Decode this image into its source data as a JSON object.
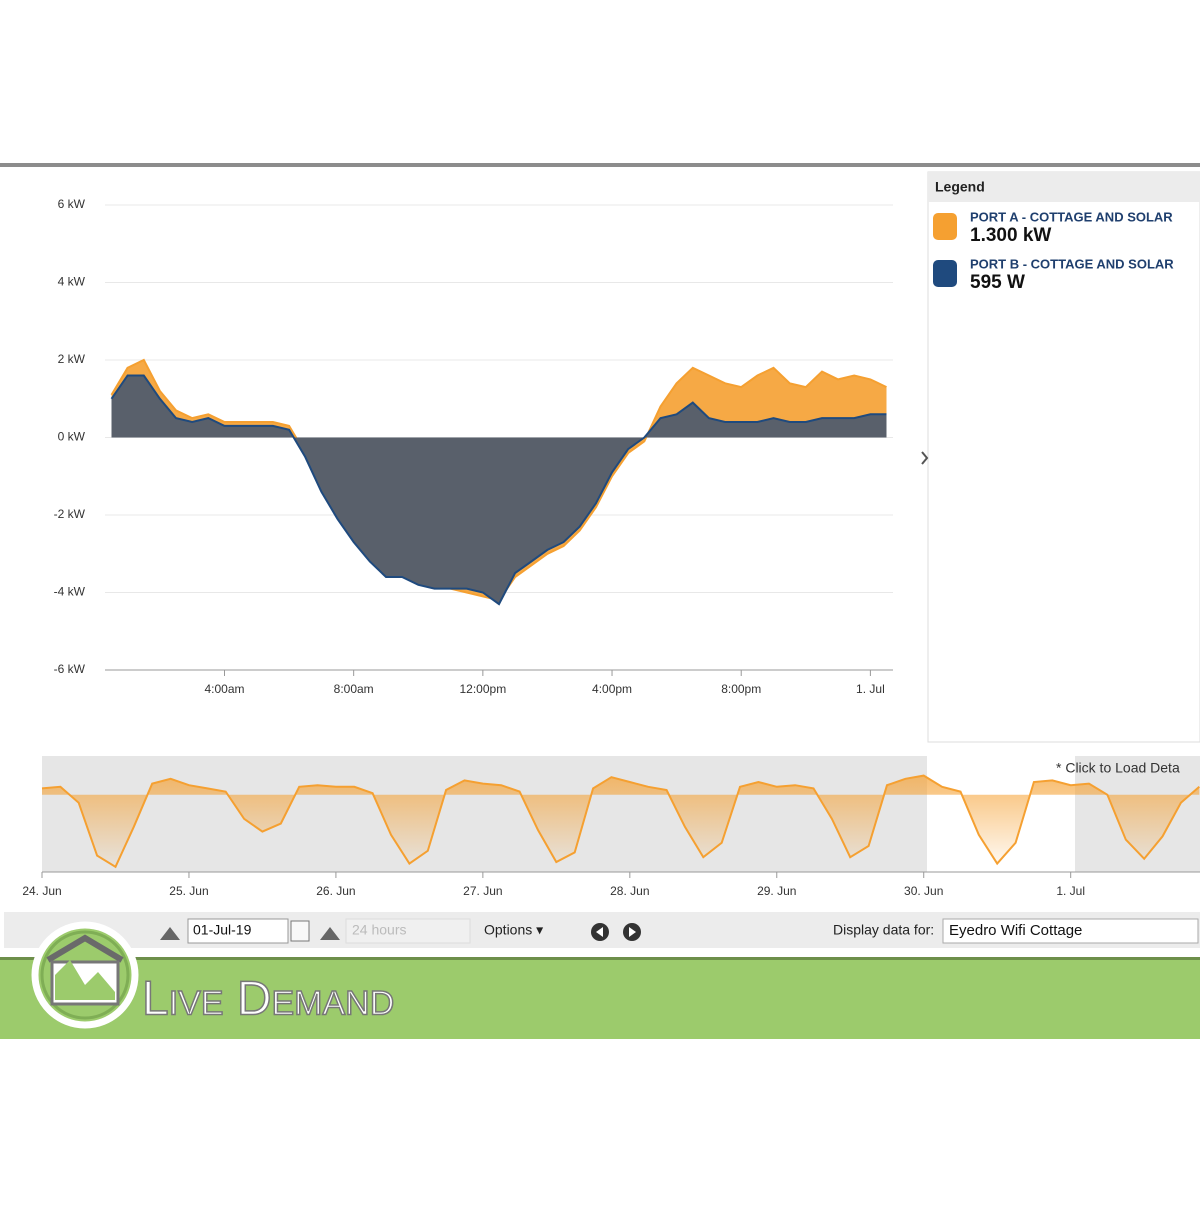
{
  "chart_data": [
    {
      "type": "area",
      "x": [
        0.5,
        1,
        1.5,
        2,
        2.5,
        3,
        3.5,
        4,
        4.5,
        5,
        5.5,
        6,
        6.5,
        7,
        7.5,
        8,
        8.5,
        9,
        9.5,
        10,
        10.5,
        11,
        11.5,
        12,
        12.5,
        13,
        13.5,
        14,
        14.5,
        15,
        15.5,
        16,
        16.5,
        17,
        17.5,
        18,
        18.5,
        19,
        19.5,
        20,
        20.5,
        21,
        21.5,
        22,
        22.5,
        23,
        23.5,
        24,
        24.5
      ],
      "series": [
        {
          "name": "PORT A - COTTAGE AND SOLAR",
          "current_label": "1.300 kW",
          "color": "#f5a031",
          "values": [
            1.1,
            1.8,
            2.0,
            1.2,
            0.7,
            0.5,
            0.6,
            0.4,
            0.4,
            0.4,
            0.4,
            0.3,
            -0.4,
            -1.3,
            -2.0,
            -2.6,
            -3.1,
            -3.5,
            -3.5,
            -3.7,
            -3.8,
            -3.9,
            -4.0,
            -4.1,
            -4.2,
            -3.6,
            -3.3,
            -3.0,
            -2.8,
            -2.4,
            -1.8,
            -1.0,
            -0.4,
            -0.1,
            0.8,
            1.4,
            1.8,
            1.6,
            1.4,
            1.3,
            1.6,
            1.8,
            1.4,
            1.3,
            1.7,
            1.5,
            1.6,
            1.5,
            1.3
          ]
        },
        {
          "name": "PORT B - COTTAGE AND SOLAR",
          "current_label": "595 W",
          "color": "#1f4a7e",
          "values": [
            1.0,
            1.6,
            1.6,
            1.0,
            0.5,
            0.4,
            0.5,
            0.3,
            0.3,
            0.3,
            0.3,
            0.2,
            -0.5,
            -1.4,
            -2.1,
            -2.7,
            -3.2,
            -3.6,
            -3.6,
            -3.8,
            -3.9,
            -3.9,
            -3.9,
            -4.0,
            -4.3,
            -3.5,
            -3.2,
            -2.9,
            -2.7,
            -2.3,
            -1.7,
            -0.9,
            -0.3,
            0.0,
            0.5,
            0.6,
            0.9,
            0.5,
            0.4,
            0.4,
            0.4,
            0.5,
            0.4,
            0.4,
            0.5,
            0.5,
            0.5,
            0.6,
            0.6
          ]
        }
      ],
      "xlim": [
        0.3,
        24.7
      ],
      "xticks": [
        {
          "value": 4,
          "label": "4:00am"
        },
        {
          "value": 8,
          "label": "8:00am"
        },
        {
          "value": 12,
          "label": "12:00pm"
        },
        {
          "value": 16,
          "label": "4:00pm"
        },
        {
          "value": 20,
          "label": "8:00pm"
        },
        {
          "value": 24,
          "label": "1. Jul"
        }
      ],
      "ylim": [
        -6,
        6
      ],
      "yticks": [
        {
          "value": -6,
          "label": "-6 kW"
        },
        {
          "value": -4,
          "label": "-4 kW"
        },
        {
          "value": -2,
          "label": "-2 kW"
        },
        {
          "value": 0,
          "label": "0 kW"
        },
        {
          "value": 2,
          "label": "2 kW"
        },
        {
          "value": 4,
          "label": "4 kW"
        },
        {
          "value": 6,
          "label": "6 kW"
        }
      ],
      "grid": true,
      "legend_title": "Legend"
    },
    {
      "type": "area",
      "annotation": "* Click to Load Deta",
      "x": [
        0,
        0.125,
        0.25,
        0.375,
        0.5,
        0.625,
        0.75,
        0.875,
        1,
        1.125,
        1.25,
        1.375,
        1.5,
        1.625,
        1.75,
        1.875,
        2,
        2.125,
        2.25,
        2.375,
        2.5,
        2.625,
        2.75,
        2.875,
        3,
        3.125,
        3.25,
        3.375,
        3.5,
        3.625,
        3.75,
        3.875,
        4,
        4.125,
        4.25,
        4.375,
        4.5,
        4.625,
        4.75,
        4.875,
        5,
        5.125,
        5.25,
        5.375,
        5.5,
        5.625,
        5.75,
        5.875,
        6,
        6.125,
        6.25,
        6.375,
        6.5,
        6.625,
        6.75,
        6.875,
        7,
        7.125,
        7.25,
        7.375,
        7.5,
        7.625,
        7.75,
        7.875
      ],
      "values": [
        0.4,
        0.5,
        -0.5,
        -3.8,
        -4.5,
        -2.0,
        0.7,
        1.0,
        0.6,
        0.4,
        0.2,
        -1.5,
        -2.3,
        -1.8,
        0.5,
        0.6,
        0.5,
        0.5,
        0.1,
        -2.5,
        -4.3,
        -3.5,
        0.3,
        0.9,
        0.7,
        0.6,
        0.2,
        -2.2,
        -4.2,
        -3.6,
        0.4,
        1.1,
        0.8,
        0.5,
        0.3,
        -2.0,
        -3.9,
        -3.0,
        0.5,
        0.8,
        0.5,
        0.6,
        0.4,
        -1.5,
        -3.9,
        -3.2,
        0.6,
        1.0,
        1.2,
        0.5,
        0.2,
        -2.5,
        -4.3,
        -3.0,
        0.8,
        0.9,
        0.6,
        0.7,
        0.0,
        -2.8,
        -4.0,
        -2.6,
        -0.5,
        0.5
      ],
      "color": "#f5a031",
      "xlim": [
        0,
        7.88
      ],
      "ylim": [
        -4.7,
        2.3
      ],
      "xticks": [
        {
          "value": 0,
          "label": "24. Jun"
        },
        {
          "value": 1,
          "label": "25. Jun"
        },
        {
          "value": 2,
          "label": "26. Jun"
        },
        {
          "value": 3,
          "label": "27. Jun"
        },
        {
          "value": 4,
          "label": "28. Jun"
        },
        {
          "value": 5,
          "label": "29. Jun"
        },
        {
          "value": 6,
          "label": "30. Jun"
        },
        {
          "value": 7,
          "label": "1. Jul"
        }
      ]
    }
  ],
  "toolbar": {
    "date": "01-Jul-19",
    "range": "24 hours",
    "options": "Options ▾",
    "display_label": "Display data for:",
    "device": "Eyedro Wifi Cottage"
  },
  "banner": {
    "title": "Live Demand"
  }
}
